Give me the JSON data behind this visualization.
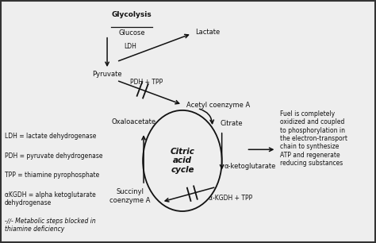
{
  "bg_color": "#c8c8c8",
  "inner_bg": "#eeeeee",
  "border_color": "#333333",
  "text_color": "#111111",
  "title": "Citric\nacid\ncycle",
  "glycolysis_label": "Glycolysis",
  "glucose_label": "Glucose",
  "ldh_label": "LDH",
  "lactate_label": "Lactate",
  "pyruvate_label": "Pyruvate",
  "pdh_label": "PDH + TPP",
  "acetyl_label": "Acetyl coenzyme A",
  "oxaloacetate_label": "Oxaloacetate",
  "citrate_label": "Citrate",
  "akg_label": "α-ketoglutarate",
  "akgdh_label": "α-KGDH + TPP",
  "succinyl_label": "Succinyl\ncoenzyme A",
  "legend_ldh": "LDH = lactate dehydrogenase",
  "legend_pdh": "PDH = pyruvate dehydrogenase",
  "legend_tpp": "TPP = thiamine pyrophosphate",
  "legend_akgdh": "αKGDH = alpha ketoglutarate\ndehydrogenase",
  "legend_block": "-∕∕- Metabolic steps blocked in\nthiamine deficiency",
  "right_text": "Fuel is completely\noxidized and coupled\nto phosphorylation in\nthe electron-transport\nchain to synthesize\nATP and regenerate\nreducing substances",
  "figw": 4.74,
  "figh": 3.06,
  "dpi": 100
}
